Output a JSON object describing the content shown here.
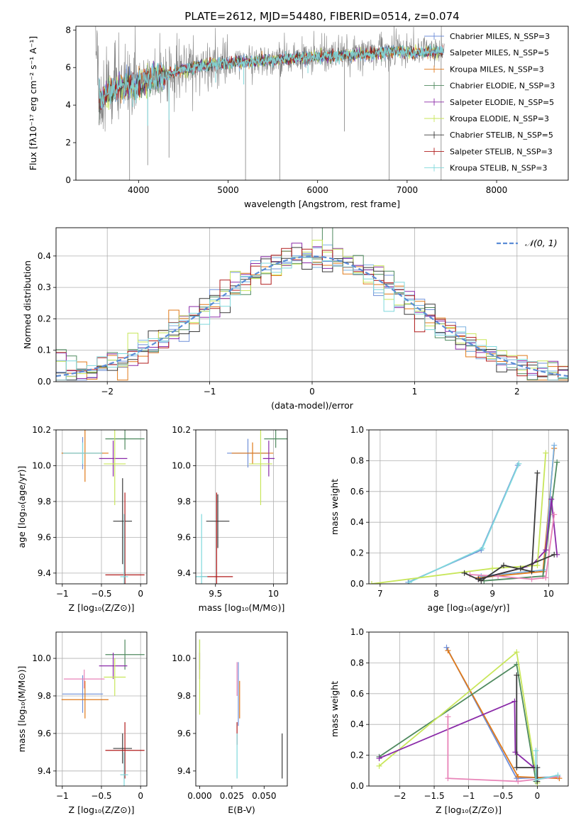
{
  "colors": {
    "chabrier_miles": "#6f8fd8",
    "salpeter_miles": "#7ab0e0",
    "kroupa_miles": "#e07a1a",
    "chabrier_elodie": "#4f8a5f",
    "salpeter_elodie": "#8a2aa8",
    "kroupa_elodie": "#c8e65a",
    "chabrier_stelib": "#3a3a3a",
    "salpeter_stelib": "#b01c1c",
    "kroupa_stelib": "#7fd8dc",
    "pink": "#e884b8",
    "spectrum": "#808080",
    "normal": "#5b8cd6"
  },
  "chart_data": [
    {
      "id": "spectrum",
      "type": "line",
      "title": "PLATE=2612, MJD=54480, FIBERID=0514, z=0.074",
      "xlabel": "wavelength [Angstrom, rest frame]",
      "ylabel": "Flux [fλ10⁻¹⁷ erg cm⁻² s⁻¹ A⁻¹]",
      "xlim": [
        3300,
        8800
      ],
      "ylim": [
        0,
        8.2
      ],
      "xticks": [
        4000,
        5000,
        6000,
        7000,
        8000
      ],
      "yticks": [
        0,
        2,
        4,
        6,
        8
      ],
      "grid": false,
      "legend_position": "right",
      "legend": [
        {
          "key": "chabrier_miles",
          "label": "Chabrier MILES, N_SSP=3"
        },
        {
          "key": "salpeter_miles",
          "label": "Salpeter MILES, N_SSP=5"
        },
        {
          "key": "kroupa_miles",
          "label": "Kroupa MILES, N_SSP=3"
        },
        {
          "key": "chabrier_elodie",
          "label": "Chabrier ELODIE, N_SSP=3"
        },
        {
          "key": "salpeter_elodie",
          "label": "Salpeter ELODIE, N_SSP=5"
        },
        {
          "key": "kroupa_elodie",
          "label": "Kroupa ELODIE, N_SSP=3"
        },
        {
          "key": "chabrier_stelib",
          "label": "Chabrier STELIB, N_SSP=5"
        },
        {
          "key": "salpeter_stelib",
          "label": "Salpeter STELIB, N_SSP=3"
        },
        {
          "key": "kroupa_stelib",
          "label": "Kroupa STELIB, N_SSP=3"
        }
      ],
      "continuum": [
        [
          3550,
          4.1
        ],
        [
          3650,
          4.6
        ],
        [
          3750,
          4.9
        ],
        [
          3850,
          5.1
        ],
        [
          3950,
          5.0
        ],
        [
          4100,
          5.4
        ],
        [
          4300,
          5.6
        ],
        [
          4500,
          5.9
        ],
        [
          4700,
          6.1
        ],
        [
          4900,
          6.2
        ],
        [
          5100,
          6.3
        ],
        [
          5300,
          6.35
        ],
        [
          5500,
          6.4
        ],
        [
          5700,
          6.5
        ],
        [
          5900,
          6.55
        ],
        [
          6100,
          6.6
        ],
        [
          6300,
          6.65
        ],
        [
          6500,
          6.7
        ],
        [
          6700,
          6.8
        ],
        [
          6900,
          6.85
        ],
        [
          7100,
          6.8
        ],
        [
          7400,
          6.85
        ]
      ],
      "spikes": [
        [
          3900,
          0.0
        ],
        [
          4102,
          0.8
        ],
        [
          4340,
          1.2
        ],
        [
          5195,
          0.0
        ],
        [
          5577,
          0.0
        ],
        [
          6300,
          2.6
        ],
        [
          6800,
          0.0
        ],
        [
          7380,
          0.0
        ]
      ]
    },
    {
      "id": "residuals",
      "type": "step-histogram",
      "xlabel": "(data-model)/error",
      "ylabel": "Normed distribution",
      "xlim": [
        -2.5,
        2.5
      ],
      "ylim": [
        0,
        0.49
      ],
      "xticks": [
        -2,
        -1,
        0,
        1,
        2
      ],
      "yticks": [
        0.0,
        0.1,
        0.2,
        0.3,
        0.4
      ],
      "grid": true,
      "legend_position": "top-right",
      "legend": [
        {
          "key": "normal",
          "label": "𝒩(0, 1)"
        }
      ],
      "bin_width": 0.1
    },
    {
      "id": "age_vs_Z",
      "type": "errorbar",
      "xlabel": "Z [log₁₀(Z/Z⊙)]",
      "ylabel": "age  [log₁₀(age/yr)]",
      "xlim": [
        -1.08,
        0.08
      ],
      "ylim": [
        9.34,
        10.2
      ],
      "xticks": [
        -1.0,
        -0.5,
        0.0
      ],
      "yticks": [
        9.4,
        9.6,
        9.8,
        10.0,
        10.2
      ],
      "grid": true,
      "points": [
        {
          "key": "chabrier_miles",
          "x": -0.74,
          "y": 10.07,
          "xerr": 0.26,
          "yerr": 0.09
        },
        {
          "key": "kroupa_miles",
          "x": -0.71,
          "y": 10.07,
          "xerr": 0.3,
          "yerr": 0.16
        },
        {
          "key": "kroupa_stelib",
          "x": -0.74,
          "y": 10.07,
          "xerr": 0.25,
          "yerr": 0.06
        },
        {
          "key": "chabrier_elodie",
          "x": -0.2,
          "y": 10.15,
          "xerr": 0.25,
          "yerr": 0.06
        },
        {
          "key": "salpeter_elodie",
          "x": -0.35,
          "y": 10.04,
          "xerr": 0.18,
          "yerr": 0.1
        },
        {
          "key": "kroupa_elodie",
          "x": -0.33,
          "y": 10.01,
          "xerr": 0.14,
          "yerr": 0.23
        },
        {
          "key": "chabrier_stelib",
          "x": -0.23,
          "y": 9.69,
          "xerr": 0.12,
          "yerr": 0.24
        },
        {
          "key": "salpeter_stelib",
          "x": -0.2,
          "y": 9.39,
          "xerr": 0.25,
          "yerr": 0.46
        },
        {
          "key": "kroupa_stelib",
          "x": -0.21,
          "y": 9.38,
          "xerr": 0.05,
          "yerr": 0.35
        }
      ]
    },
    {
      "id": "age_vs_mass",
      "type": "errorbar",
      "xlabel": "mass [log₁₀(M/M⊙)]",
      "ylabel": "",
      "xlim": [
        9.33,
        10.12
      ],
      "ylim": [
        9.34,
        10.2
      ],
      "xticks": [
        9.5,
        10.0
      ],
      "yticks": [
        9.4,
        9.6,
        9.8,
        10.0,
        10.2
      ],
      "grid": true,
      "points": [
        {
          "key": "chabrier_miles",
          "x": 9.78,
          "y": 10.07,
          "xerr": 0.18,
          "yerr": 0.08
        },
        {
          "key": "kroupa_miles",
          "x": 9.82,
          "y": 10.07,
          "xerr": 0.18,
          "yerr": 0.06
        },
        {
          "key": "chabrier_elodie",
          "x": 10.02,
          "y": 10.15,
          "xerr": 0.1,
          "yerr": 0.05
        },
        {
          "key": "salpeter_elodie",
          "x": 9.96,
          "y": 10.04,
          "xerr": 0.05,
          "yerr": 0.1
        },
        {
          "key": "kroupa_elodie",
          "x": 9.89,
          "y": 10.01,
          "xerr": 0.1,
          "yerr": 0.23
        },
        {
          "key": "chabrier_stelib",
          "x": 9.52,
          "y": 9.69,
          "xerr": 0.1,
          "yerr": 0.15
        },
        {
          "key": "salpeter_stelib",
          "x": 9.51,
          "y": 9.38,
          "xerr": 0.14,
          "yerr": 0.47
        },
        {
          "key": "kroupa_stelib",
          "x": 9.38,
          "y": 9.38,
          "xerr": 0.05,
          "yerr": 0.35
        }
      ]
    },
    {
      "id": "weight_vs_age",
      "type": "line",
      "xlabel": "age  [log₁₀(age/yr)]",
      "ylabel": "mass weight",
      "xlim": [
        6.8,
        10.35
      ],
      "ylim": [
        0,
        1.0
      ],
      "xticks": [
        7,
        8,
        9,
        10
      ],
      "yticks": [
        0.0,
        0.2,
        0.4,
        0.6,
        0.8,
        1.0
      ],
      "grid": true,
      "series": [
        {
          "key": "chabrier_miles",
          "x": [
            7.5,
            8.8,
            9.45
          ],
          "y": [
            0.01,
            0.22,
            0.77
          ]
        },
        {
          "key": "kroupa_stelib",
          "x": [
            7.52,
            8.82,
            9.47
          ],
          "y": [
            0.01,
            0.23,
            0.78
          ]
        },
        {
          "key": "kroupa_miles",
          "x": [
            8.75,
            9.9,
            10.1
          ],
          "y": [
            0.04,
            0.08,
            0.88
          ]
        },
        {
          "key": "salpeter_miles",
          "x": [
            8.8,
            9.92,
            10.1
          ],
          "y": [
            0.05,
            0.09,
            0.9
          ]
        },
        {
          "key": "chabrier_elodie",
          "x": [
            8.85,
            9.9,
            10.15
          ],
          "y": [
            0.02,
            0.05,
            0.79
          ]
        },
        {
          "key": "salpeter_elodie",
          "x": [
            8.75,
            9.7,
            9.95,
            10.05,
            10.15
          ],
          "y": [
            0.03,
            0.12,
            0.22,
            0.55,
            0.19
          ]
        },
        {
          "key": "pink",
          "x": [
            8.6,
            9.1,
            9.7,
            9.95,
            10.1
          ],
          "y": [
            0.06,
            0.05,
            0.03,
            0.04,
            0.45
          ]
        },
        {
          "key": "kroupa_elodie",
          "x": [
            6.85,
            9.0,
            9.8,
            9.95
          ],
          "y": [
            0.0,
            0.1,
            0.12,
            0.85
          ]
        },
        {
          "key": "chabrier_stelib",
          "x": [
            8.5,
            8.8,
            9.2,
            9.7,
            9.8
          ],
          "y": [
            0.07,
            0.02,
            0.12,
            0.08,
            0.72
          ]
        },
        {
          "key": "chabrier_stelib",
          "x": [
            8.75,
            9.5,
            10.1
          ],
          "y": [
            0.03,
            0.1,
            0.19
          ]
        }
      ]
    },
    {
      "id": "mass_vs_Z",
      "type": "errorbar",
      "xlabel": "Z [log₁₀(Z/Z⊙)]",
      "ylabel": "mass [log₁₀(M/M⊙)]",
      "xlim": [
        -1.08,
        0.08
      ],
      "ylim": [
        9.32,
        10.14
      ],
      "xticks": [
        -1.0,
        -0.5,
        0.0
      ],
      "yticks": [
        9.4,
        9.6,
        9.8,
        10.0
      ],
      "grid": true,
      "points": [
        {
          "key": "chabrier_miles",
          "x": -0.74,
          "y": 9.81,
          "xerr": 0.26,
          "yerr": 0.1
        },
        {
          "key": "pink",
          "x": -0.72,
          "y": 9.89,
          "xerr": 0.26,
          "yerr": 0.05
        },
        {
          "key": "kroupa_miles",
          "x": -0.71,
          "y": 9.78,
          "xerr": 0.3,
          "yerr": 0.1
        },
        {
          "key": "chabrier_elodie",
          "x": -0.2,
          "y": 10.02,
          "xerr": 0.25,
          "yerr": 0.08
        },
        {
          "key": "salpeter_elodie",
          "x": -0.35,
          "y": 9.96,
          "xerr": 0.18,
          "yerr": 0.07
        },
        {
          "key": "kroupa_elodie",
          "x": -0.33,
          "y": 9.9,
          "xerr": 0.14,
          "yerr": 0.1
        },
        {
          "key": "chabrier_stelib",
          "x": -0.23,
          "y": 9.52,
          "xerr": 0.12,
          "yerr": 0.08
        },
        {
          "key": "salpeter_stelib",
          "x": -0.2,
          "y": 9.51,
          "xerr": 0.25,
          "yerr": 0.15
        },
        {
          "key": "kroupa_stelib",
          "x": -0.21,
          "y": 9.38,
          "xerr": 0.05,
          "yerr": 0.12
        }
      ]
    },
    {
      "id": "mass_vs_ebv",
      "type": "errorbar",
      "xlabel": "E(B-V)",
      "ylabel": "",
      "xlim": [
        -0.003,
        0.068
      ],
      "ylim": [
        9.32,
        10.14
      ],
      "xticks": [
        0.0,
        0.025,
        0.05
      ],
      "xtick_labels": [
        "0.000",
        "0.025",
        "0.050"
      ],
      "yticks": [
        9.4,
        9.6,
        9.8,
        10.0
      ],
      "grid": false,
      "points": [
        {
          "key": "chabrier_elodie",
          "x": 0.0,
          "y": 10.02,
          "xerr": 0,
          "yerr": 0.08
        },
        {
          "key": "salpeter_elodie",
          "x": 0.0,
          "y": 9.96,
          "xerr": 0,
          "yerr": 0.07
        },
        {
          "key": "kroupa_elodie",
          "x": 0.0,
          "y": 9.9,
          "xerr": 0,
          "yerr": 0.2
        },
        {
          "key": "chabrier_miles",
          "x": 0.03,
          "y": 9.81,
          "xerr": 0,
          "yerr": 0.17
        },
        {
          "key": "pink",
          "x": 0.029,
          "y": 9.89,
          "xerr": 0,
          "yerr": 0.09
        },
        {
          "key": "kroupa_miles",
          "x": 0.031,
          "y": 9.78,
          "xerr": 0,
          "yerr": 0.1
        },
        {
          "key": "salpeter_stelib",
          "x": 0.029,
          "y": 9.6,
          "xerr": 0,
          "yerr": 0.06
        },
        {
          "key": "kroupa_stelib",
          "x": 0.029,
          "y": 9.48,
          "xerr": 0,
          "yerr": 0.12
        },
        {
          "key": "chabrier_stelib",
          "x": 0.064,
          "y": 9.48,
          "xerr": 0,
          "yerr": 0.12
        }
      ]
    },
    {
      "id": "weight_vs_Z",
      "type": "line",
      "xlabel": "Z [log₁₀(Z/Z⊙)]",
      "ylabel": "mass weight",
      "xlim": [
        -2.45,
        0.45
      ],
      "ylim": [
        0,
        1.0
      ],
      "xticks": [
        -2.0,
        -1.5,
        -1.0,
        -0.5,
        0.0
      ],
      "yticks": [
        0.0,
        0.2,
        0.4,
        0.6,
        0.8,
        1.0
      ],
      "grid": true,
      "series": [
        {
          "key": "chabrier_miles",
          "x": [
            -1.32,
            -0.3,
            0.3
          ],
          "y": [
            0.9,
            0.05,
            0.06
          ]
        },
        {
          "key": "kroupa_miles",
          "x": [
            -1.3,
            -0.28,
            0.32
          ],
          "y": [
            0.88,
            0.06,
            0.05
          ]
        },
        {
          "key": "chabrier_elodie",
          "x": [
            -2.3,
            -0.3,
            -0.02
          ],
          "y": [
            0.19,
            0.79,
            0.03
          ]
        },
        {
          "key": "kroupa_elodie",
          "x": [
            -2.3,
            -0.3,
            0.0
          ],
          "y": [
            0.13,
            0.87,
            0.02
          ]
        },
        {
          "key": "salpeter_elodie",
          "x": [
            -2.3,
            -0.33,
            -0.32,
            -0.05
          ],
          "y": [
            0.18,
            0.55,
            0.22,
            0.12
          ]
        },
        {
          "key": "pink",
          "x": [
            -1.3,
            -1.3,
            -0.28,
            0.3
          ],
          "y": [
            0.45,
            0.05,
            0.03,
            0.06
          ]
        },
        {
          "key": "chabrier_stelib",
          "x": [
            -0.3,
            -0.3,
            0.0,
            0.0
          ],
          "y": [
            0.72,
            0.12,
            0.12,
            0.03
          ]
        },
        {
          "key": "kroupa_stelib",
          "x": [
            -0.02,
            -0.02,
            0.3
          ],
          "y": [
            0.23,
            0.04,
            0.07
          ]
        }
      ]
    }
  ]
}
